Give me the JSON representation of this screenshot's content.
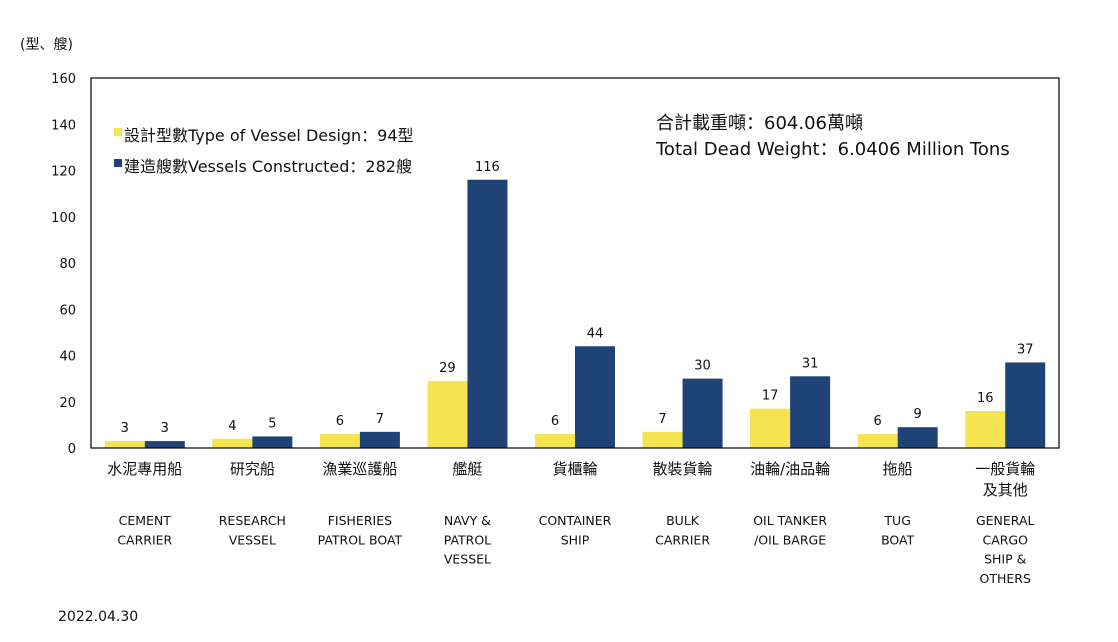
{
  "chart_data": {
    "type": "bar",
    "unit_label": "(型、艘)",
    "ylim": [
      0,
      160
    ],
    "yticks": [
      0,
      20,
      40,
      60,
      80,
      100,
      120,
      140,
      160
    ],
    "categories_zh": [
      [
        "水泥專用船"
      ],
      [
        "研究船"
      ],
      [
        "漁業巡護船"
      ],
      [
        "艦艇"
      ],
      [
        "貨櫃輪"
      ],
      [
        "散裝貨輪"
      ],
      [
        "油輪/油品輪"
      ],
      [
        "拖船"
      ],
      [
        "一般貨輪",
        "及其他"
      ]
    ],
    "categories_en": [
      [
        "CEMENT",
        "CARRIER"
      ],
      [
        "RESEARCH",
        "VESSEL"
      ],
      [
        "FISHERIES",
        "PATROL BOAT"
      ],
      [
        "NAVY &",
        "PATROL",
        "VESSEL"
      ],
      [
        "CONTAINER",
        "SHIP"
      ],
      [
        "BULK",
        "CARRIER"
      ],
      [
        "OIL TANKER",
        "/OIL BARGE"
      ],
      [
        "TUG",
        "BOAT"
      ],
      [
        "GENERAL",
        "CARGO",
        "SHIP &",
        "OTHERS"
      ]
    ],
    "series": [
      {
        "name": "設計型數Type of Vessel Design：94型",
        "color": "#F5E350",
        "values": [
          3,
          4,
          6,
          29,
          6,
          7,
          17,
          6,
          16
        ]
      },
      {
        "name": "建造艘數Vessels Constructed：282艘",
        "color": "#1F4277",
        "values": [
          3,
          5,
          7,
          116,
          44,
          30,
          31,
          9,
          37
        ]
      }
    ],
    "legend_position": "top-left",
    "annotation": [
      "合計載重噸：604.06萬噸",
      "Total Dead Weight：6.0406 Million Tons"
    ],
    "grid": false
  },
  "footer": {
    "date": "2022.04.30"
  }
}
